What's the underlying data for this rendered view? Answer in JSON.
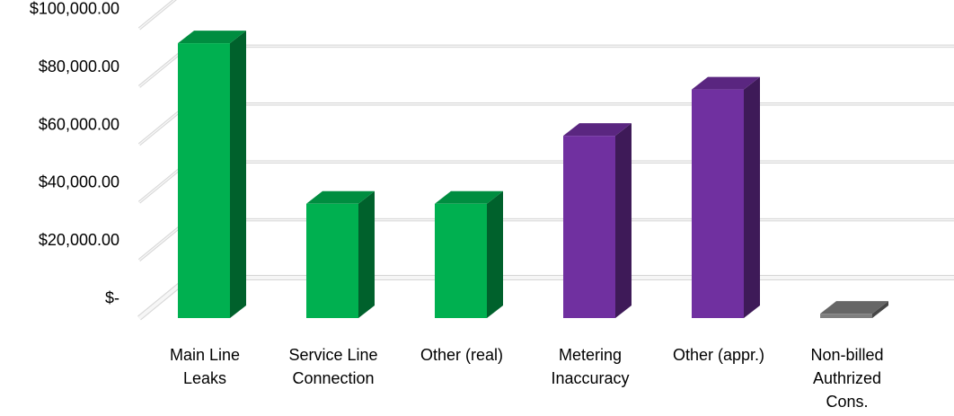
{
  "chart_data": {
    "type": "bar",
    "title": "",
    "xlabel": "",
    "ylabel": "",
    "categories": [
      [
        "Main Line",
        "Leaks"
      ],
      [
        "Service Line",
        "Connection"
      ],
      [
        "Other (real)"
      ],
      [
        "Metering",
        "Inaccuracy"
      ],
      [
        "Other (appr.)"
      ],
      [
        "Non-billed",
        "Authrized",
        "Cons."
      ]
    ],
    "values": [
      95000,
      39500,
      39500,
      63000,
      79000,
      1500
    ],
    "colors": [
      "#00b050",
      "#00b050",
      "#00b050",
      "#7030a0",
      "#7030a0",
      "#7f7f7f"
    ],
    "ylim": [
      0,
      100000
    ],
    "yticks": [
      0,
      20000,
      40000,
      60000,
      80000,
      100000
    ],
    "ytick_labels": [
      "$-",
      "$20,000.00",
      "$40,000.00",
      "$60,000.00",
      "$80,000.00",
      "$100,000.00"
    ],
    "grid": true,
    "legend": "none"
  }
}
